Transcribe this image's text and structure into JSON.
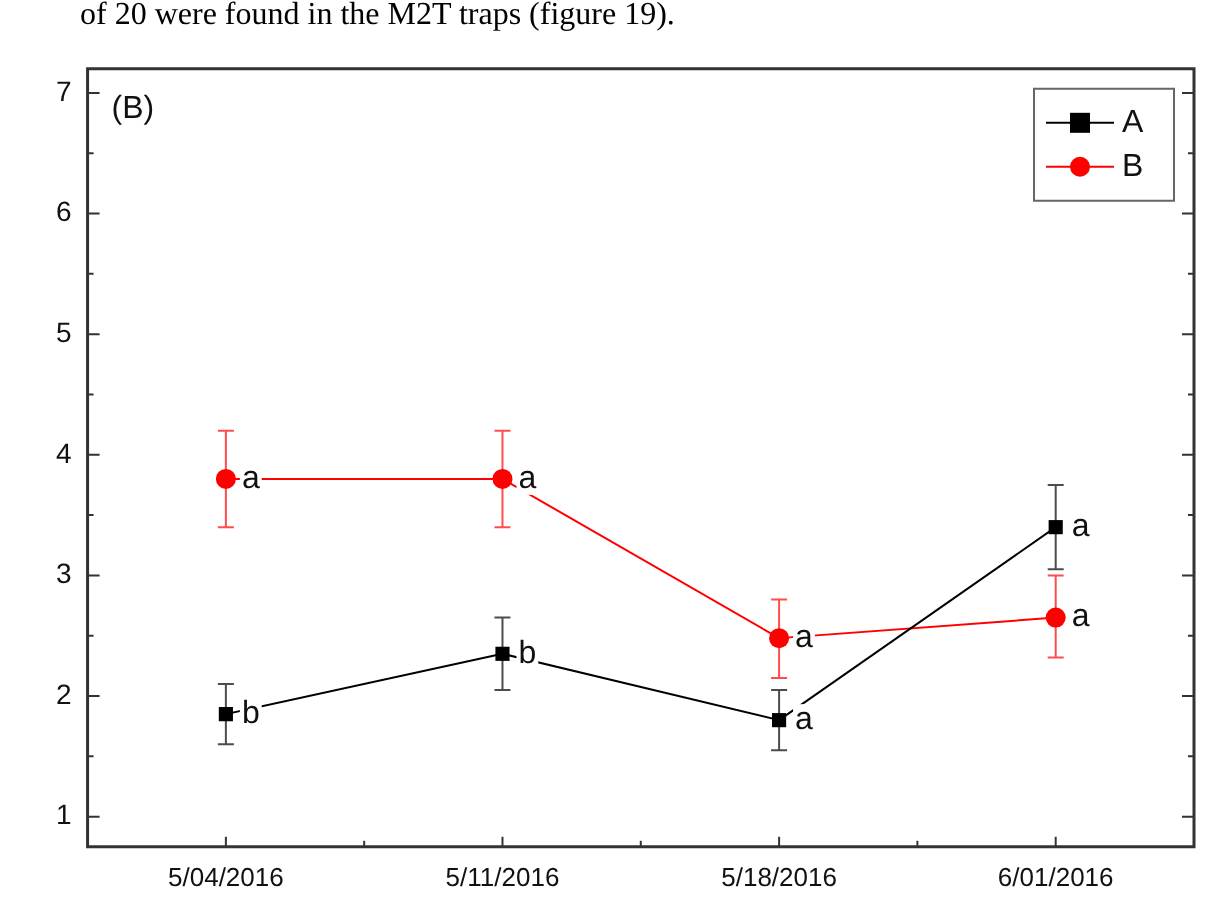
{
  "chart_data": {
    "type": "line",
    "categories": [
      "5/04/2016",
      "5/11/2016",
      "5/18/2016",
      "6/01/2016"
    ],
    "series": [
      {
        "name": "A",
        "color": "#000000",
        "marker": "square",
        "values": [
          1.85,
          2.35,
          1.8,
          3.4
        ],
        "errors": [
          0.25,
          0.3,
          0.25,
          0.35
        ]
      },
      {
        "name": "B",
        "color": "#ff0000",
        "marker": "circle",
        "values": [
          3.8,
          3.8,
          2.48,
          2.65
        ],
        "errors": [
          0.4,
          0.4,
          [
            2.15,
            2.8
          ],
          [
            2.32,
            3.0
          ]
        ]
      }
    ],
    "ylim": [
      0.75,
      7.2
    ],
    "yticks": [
      1,
      {
        "value": 1.5,
        "label": null
      },
      2,
      {
        "value": 2.5,
        "label": null
      },
      3,
      {
        "value": 3.5,
        "label": null
      },
      4,
      {
        "value": 4.5,
        "label": null
      },
      5,
      {
        "value": 5.5,
        "label": null
      },
      6,
      {
        "value": 6.5,
        "label": null
      },
      7
    ],
    "grid": false,
    "legend": "top right",
    "line_style": "solid",
    "annotations": [
      "of 20 were found in the M2T traps (figure 19).",
      "(B)",
      {
        "text": "b",
        "x": "5/04/2016",
        "y": 1.85
      },
      {
        "text": "b",
        "x": "5/11/2016",
        "y": 2.35
      },
      {
        "text": "a",
        "x": "5/18/2016",
        "y": 1.8
      },
      {
        "text": "a",
        "x": "6/01/2016",
        "y": 3.4
      },
      {
        "text": "a",
        "x": "5/04/2016",
        "y": 3.8
      },
      {
        "text": "a",
        "x": "5/11/2016",
        "y": 3.8
      },
      {
        "text": "a",
        "x": "5/18/2016",
        "y": 2.48
      },
      {
        "text": "a",
        "x": "6/01/2016",
        "y": 2.65
      }
    ]
  }
}
